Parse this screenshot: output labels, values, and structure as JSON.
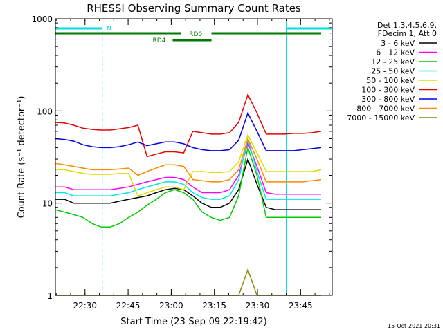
{
  "chart_data": {
    "type": "line",
    "title": "RHESSI Observing Summary Count Rates",
    "xlabel": "Start Time (23-Sep-09 22:19:42)",
    "ylabel": "Count Rate (s⁻¹ detector⁻¹)",
    "y_scale": "log",
    "ylim": [
      1,
      1000
    ],
    "xlim": [
      "22:19:42",
      "23:56:00"
    ],
    "y_ticks": [
      "1",
      "10",
      "100",
      "1000"
    ],
    "x_ticks": [
      "22:30",
      "22:45",
      "23:00",
      "23:15",
      "23:30",
      "23:45"
    ],
    "legend_header": [
      "Det 1,3,4,5,6,9,",
      "FDecim 1, Att 0"
    ],
    "legend_position": "right",
    "footer_timestamp": "15-Oct-2021 20:31",
    "flags": {
      "saa_label": "N",
      "rd0_label": "RD0",
      "rd4_label": "RD4",
      "night_intervals": [
        [
          "22:19:42",
          "22:36:00"
        ],
        [
          "23:40:00",
          "23:56:00"
        ]
      ]
    },
    "series": [
      {
        "name": "3 - 6 keV",
        "color": "#000000",
        "values": [
          11,
          11,
          10,
          10,
          10,
          10,
          10,
          10.5,
          11,
          11.5,
          12,
          13,
          14,
          14.5,
          14,
          12,
          10,
          9,
          9,
          10,
          14,
          30,
          16,
          9,
          8.5,
          8.5,
          8.5,
          8.5,
          8.5,
          8.5
        ]
      },
      {
        "name": "6 - 12 keV",
        "color": "#ff00ff",
        "values": [
          15,
          15,
          14,
          14,
          14,
          14,
          14,
          14.5,
          15,
          16,
          17,
          18,
          19,
          19,
          18,
          15,
          13,
          13,
          13,
          14,
          20,
          45,
          25,
          13,
          12.5,
          12.5,
          12.5,
          12.5,
          12.5,
          12.5
        ]
      },
      {
        "name": "12 - 25 keV",
        "color": "#00cc00",
        "values": [
          8.5,
          8,
          7.5,
          7,
          6,
          5.5,
          5.5,
          6,
          7,
          8,
          9.5,
          11,
          13,
          14,
          13,
          11,
          8,
          7,
          6.5,
          7,
          12,
          40,
          20,
          7,
          7,
          7,
          7,
          7,
          7,
          7
        ]
      },
      {
        "name": "25 - 50 keV",
        "color": "#00e5e5",
        "values": [
          13,
          13,
          12,
          12,
          12,
          12,
          12,
          12.5,
          13,
          14,
          15,
          16,
          17,
          17,
          16,
          13,
          11.5,
          11,
          11,
          12,
          18,
          50,
          22,
          11,
          11,
          11,
          11,
          11,
          11,
          11
        ]
      },
      {
        "name": "50 - 100 keV",
        "color": "#dddd00",
        "values": [
          23,
          23,
          22,
          21,
          20.5,
          20.5,
          20.5,
          21,
          21,
          12,
          13,
          14,
          15,
          15,
          14,
          22,
          22,
          21.5,
          21.5,
          22,
          28,
          55,
          35,
          22,
          22,
          22,
          22,
          22,
          22,
          23
        ]
      },
      {
        "name": "100 - 300 keV",
        "color": "#e60000",
        "values": [
          75,
          74,
          70,
          65,
          63,
          62,
          62,
          64,
          66,
          70,
          32,
          34,
          36,
          36,
          35,
          60,
          58,
          56,
          56,
          58,
          75,
          150,
          95,
          56,
          56,
          56,
          57,
          57,
          58,
          60
        ]
      },
      {
        "name": "300 - 800 keV",
        "color": "#0000e6",
        "values": [
          50,
          49,
          47,
          43,
          41,
          40,
          40,
          41,
          43,
          46,
          42,
          44,
          46,
          46,
          44,
          40,
          38,
          37,
          37,
          38,
          48,
          95,
          60,
          37,
          37,
          37,
          37,
          38,
          39,
          40
        ]
      },
      {
        "name": "800 - 7000 keV",
        "color": "#ff8800",
        "values": [
          27,
          26,
          25,
          24,
          23,
          23,
          23,
          23.5,
          24,
          20,
          22,
          24,
          26,
          26,
          25,
          18,
          17.5,
          17,
          17,
          18,
          23,
          50,
          30,
          17,
          17,
          17,
          17,
          17,
          17.5,
          18
        ]
      },
      {
        "name": "7000 - 15000 keV",
        "color": "#888800",
        "values": [
          1,
          1,
          1,
          1,
          1,
          1,
          1,
          1,
          1,
          1,
          1,
          1,
          1,
          1,
          1,
          1,
          1,
          1,
          1,
          1,
          1,
          1.9,
          1,
          1,
          1,
          1,
          1,
          1,
          1,
          1
        ]
      }
    ]
  }
}
